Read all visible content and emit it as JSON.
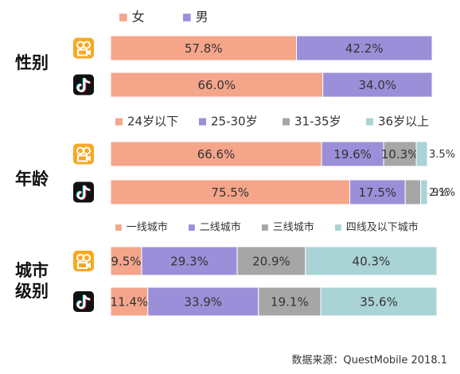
{
  "chart_data": [
    {
      "type": "stacked-bar",
      "title": "性别",
      "categories": [
        null,
        null
      ],
      "xlim": [
        0,
        100
      ],
      "series": [
        {
          "name": "女",
          "color": "#f4a58a",
          "values": [
            57.8,
            66.0
          ],
          "value_labels": [
            "57.8%",
            "66.0%"
          ]
        },
        {
          "name": "男",
          "color": "#9b8fd9",
          "values": [
            42.2,
            34.0
          ],
          "value_labels": [
            "42.2%",
            "34.0%"
          ]
        }
      ]
    },
    {
      "type": "stacked-bar",
      "title": "年龄",
      "categories": [
        null,
        null
      ],
      "xlim": [
        0,
        100
      ],
      "series": [
        {
          "name": "24岁以下",
          "color": "#f4a58a",
          "values": [
            66.6,
            75.5
          ],
          "value_labels": [
            "66.6%",
            "75.5%"
          ]
        },
        {
          "name": "25-30岁",
          "color": "#9b8fd9",
          "values": [
            19.6,
            17.5
          ],
          "value_labels": [
            "19.6%",
            "17.5%"
          ]
        },
        {
          "name": "31-35岁",
          "color": "#a6a6a6",
          "values": [
            10.3,
            4.9
          ],
          "value_labels": [
            "10.3%",
            "4.9%"
          ]
        },
        {
          "name": "36岁以上",
          "color": "#a9d3d5",
          "values": [
            3.5,
            2.1
          ],
          "value_labels": [
            "3.5%",
            "2.1%"
          ]
        }
      ]
    },
    {
      "type": "stacked-bar",
      "title": "城市级别",
      "categories": [
        null,
        null
      ],
      "xlim": [
        0,
        100
      ],
      "series": [
        {
          "name": "一线城市",
          "color": "#f4a58a",
          "values": [
            9.5,
            11.4
          ],
          "value_labels": [
            "9.5%",
            "11.4%"
          ]
        },
        {
          "name": "二线城市",
          "color": "#9b8fd9",
          "values": [
            29.3,
            33.9
          ],
          "value_labels": [
            "29.3%",
            "33.9%"
          ]
        },
        {
          "name": "三线城市",
          "color": "#a6a6a6",
          "values": [
            20.9,
            19.1
          ],
          "value_labels": [
            "20.9%",
            "19.1%"
          ]
        },
        {
          "name": "四线及以下城市",
          "color": "#a9d3d5",
          "values": [
            40.3,
            35.6
          ],
          "value_labels": [
            "40.3%",
            "35.6%"
          ]
        }
      ]
    }
  ],
  "source": "数据来源：QuestMobile 2018.1"
}
